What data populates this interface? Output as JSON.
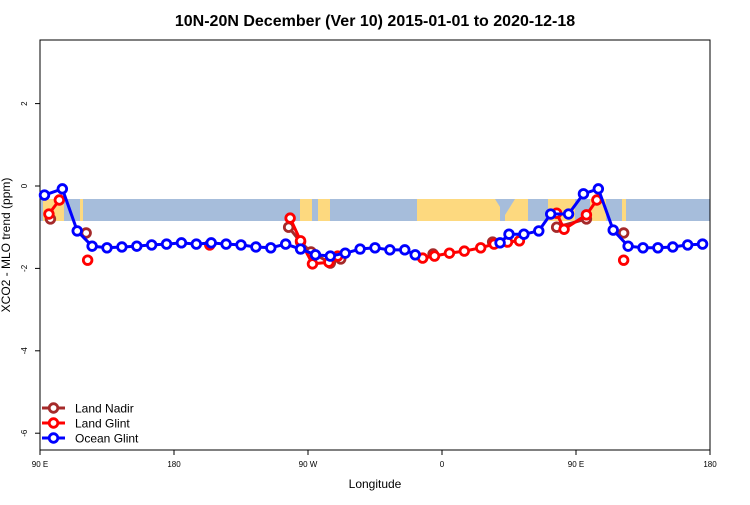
{
  "chart_data": {
    "type": "line",
    "title": "10N-20N December (Ver 10)   2015-01-01 to 2020-12-18",
    "xlabel": "Longitude",
    "ylabel": "XCO2 - MLO trend (ppm)",
    "xlim": [
      90,
      540
    ],
    "ylim": [
      -6.4,
      3.55
    ],
    "xticks": [
      {
        "value": 90,
        "label": "90 E"
      },
      {
        "value": 180,
        "label": "180"
      },
      {
        "value": 270,
        "label": "90 W"
      },
      {
        "value": 360,
        "label": "0"
      },
      {
        "value": 450,
        "label": "90 E"
      },
      {
        "value": 540,
        "label": "180"
      }
    ],
    "yticks": [
      {
        "value": 2,
        "label": "2"
      },
      {
        "value": 0,
        "label": "0"
      },
      {
        "value": -2,
        "label": "-2"
      },
      {
        "value": -4,
        "label": "-4"
      },
      {
        "value": -6,
        "label": "-6"
      }
    ],
    "grid": false,
    "legend_position": "bottom-left",
    "background_map": {
      "band_lat": "10N-20N",
      "ocean_color": "#a6bddb",
      "land_color": "#fdd97f"
    },
    "series": [
      {
        "name": "Land Nadir",
        "color": "#a52a2a",
        "points": [
          [
            97,
            -0.8
          ],
          null,
          [
            121,
            -1.14
          ],
          null,
          [
            257,
            -1.0
          ],
          [
            265,
            -1.36
          ],
          [
            272,
            -1.6
          ],
          [
            285,
            -1.87
          ],
          [
            292,
            -1.77
          ],
          null,
          [
            354,
            -1.65
          ],
          null,
          [
            394,
            -1.36
          ],
          null,
          [
            437,
            -1.0
          ],
          [
            457,
            -0.8
          ],
          null,
          [
            482,
            -1.14
          ]
        ]
      },
      {
        "name": "Land Glint",
        "color": "#ff0000",
        "points": [
          [
            96,
            -0.68
          ],
          [
            103,
            -0.34
          ],
          null,
          [
            122,
            -1.8
          ],
          null,
          [
            204,
            -1.43
          ],
          null,
          [
            258,
            -0.78
          ],
          [
            265,
            -1.33
          ],
          [
            273,
            -1.89
          ],
          [
            284,
            -1.85
          ],
          [
            290,
            -1.7
          ],
          null,
          [
            347,
            -1.75
          ],
          [
            355,
            -1.7
          ],
          [
            365,
            -1.63
          ],
          [
            375,
            -1.58
          ],
          [
            386,
            -1.5
          ],
          [
            395,
            -1.41
          ],
          [
            404,
            -1.36
          ],
          [
            412,
            -1.33
          ],
          null,
          [
            437,
            -0.66
          ],
          [
            442,
            -1.05
          ],
          [
            457,
            -0.7
          ],
          [
            464,
            -0.34
          ],
          null,
          [
            482,
            -1.8
          ]
        ]
      },
      {
        "name": "Ocean Glint",
        "color": "#0000ff",
        "points": [
          [
            93,
            -0.22
          ],
          [
            105,
            -0.07
          ],
          [
            115,
            -1.09
          ],
          [
            125,
            -1.46
          ],
          [
            135,
            -1.5
          ],
          [
            145,
            -1.48
          ],
          [
            155,
            -1.46
          ],
          [
            165,
            -1.43
          ],
          [
            175,
            -1.41
          ],
          [
            185,
            -1.38
          ],
          [
            195,
            -1.41
          ],
          [
            205,
            -1.38
          ],
          [
            215,
            -1.41
          ],
          [
            225,
            -1.43
          ],
          [
            235,
            -1.48
          ],
          [
            245,
            -1.5
          ],
          [
            255,
            -1.41
          ],
          [
            265,
            -1.53
          ],
          [
            275,
            -1.67
          ],
          [
            285,
            -1.7
          ],
          [
            295,
            -1.63
          ],
          [
            305,
            -1.53
          ],
          [
            315,
            -1.5
          ],
          [
            325,
            -1.55
          ],
          [
            335,
            -1.55
          ],
          [
            342,
            -1.67
          ],
          null,
          [
            399,
            -1.38
          ],
          [
            405,
            -1.17
          ],
          [
            415,
            -1.17
          ],
          [
            425,
            -1.09
          ],
          [
            433,
            -0.68
          ],
          [
            445,
            -0.68
          ],
          [
            455,
            -0.19
          ],
          [
            465,
            -0.07
          ],
          [
            475,
            -1.07
          ],
          [
            485,
            -1.46
          ],
          [
            495,
            -1.5
          ],
          [
            505,
            -1.5
          ],
          [
            515,
            -1.48
          ],
          [
            525,
            -1.43
          ],
          [
            535,
            -1.41
          ]
        ]
      }
    ]
  }
}
